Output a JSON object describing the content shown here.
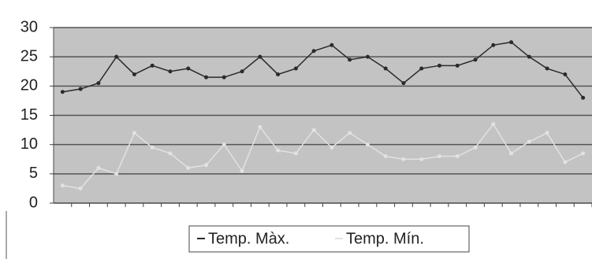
{
  "chart_data": {
    "type": "line",
    "categories": [
      null,
      null,
      null,
      null,
      null,
      null,
      null,
      null,
      null,
      null,
      null,
      null,
      null,
      null,
      null,
      null,
      null,
      null,
      null,
      null,
      null,
      null,
      null,
      null,
      null,
      null,
      null,
      null,
      null,
      null
    ],
    "series": [
      {
        "name": "Temp. Màx.",
        "color": "#2a2a2a",
        "values": [
          19,
          19.5,
          20.5,
          25,
          22,
          23.5,
          22.5,
          23,
          21.5,
          21.5,
          22.5,
          25,
          22,
          23,
          26,
          27,
          24.5,
          25,
          23,
          20.5,
          23,
          23.5,
          23.5,
          24.5,
          27,
          27.5,
          25,
          23,
          22,
          18
        ]
      },
      {
        "name": "Temp. Mín.",
        "color": "#e2e2e2",
        "values": [
          3,
          2.5,
          6,
          5,
          12,
          9.5,
          8.5,
          6,
          6.5,
          10,
          5.5,
          13,
          9,
          8.5,
          12.5,
          9.5,
          12,
          10,
          8,
          7.5,
          7.5,
          8,
          8,
          9.5,
          13.5,
          8.5,
          10.5,
          12,
          7,
          8.5
        ]
      }
    ],
    "ylim": [
      0,
      30
    ],
    "yticks": [
      0,
      5,
      10,
      15,
      20,
      25,
      30
    ],
    "grid": true,
    "legend": "bottom"
  }
}
